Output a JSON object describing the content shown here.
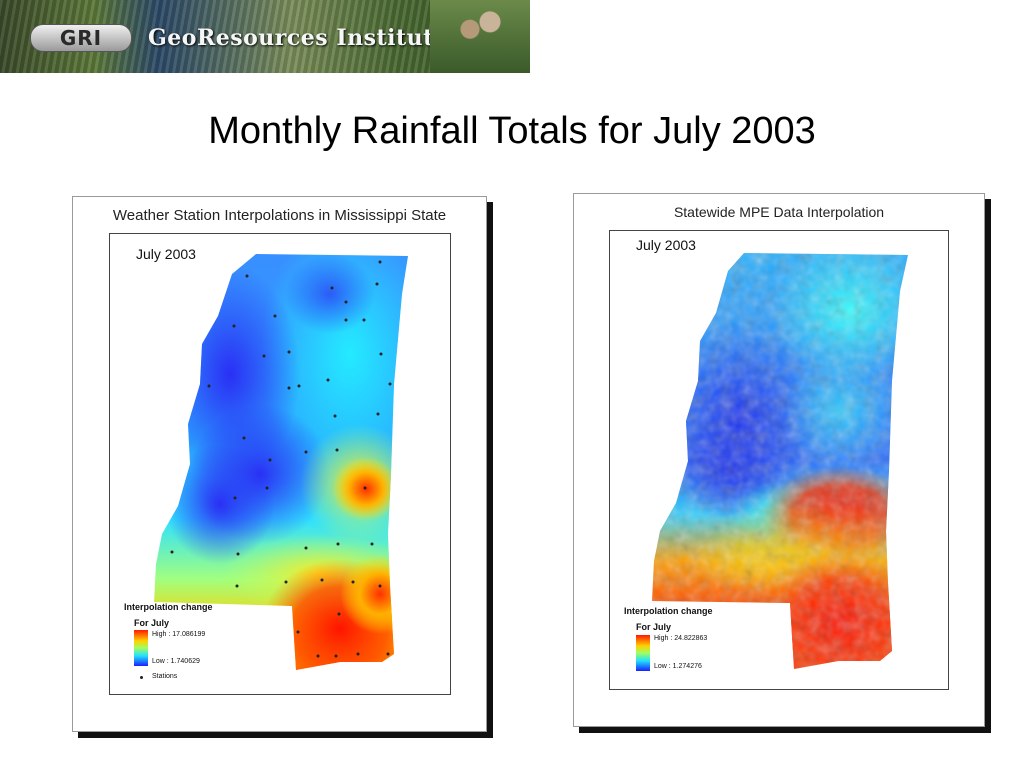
{
  "banner": {
    "logo_text": "GRI",
    "name": "GeoResources Institute"
  },
  "title": "Monthly Rainfall Totals for July 2003",
  "panels": {
    "left": {
      "title": "Weather Station Interpolations in Mississippi State",
      "month": "July 2003",
      "legend": {
        "title": "Interpolation change",
        "subtitle": "For July",
        "high": "High : 17.086199",
        "low": "Low : 1.740629",
        "stations": "Stations"
      }
    },
    "right": {
      "title": "Statewide MPE Data Interpolation",
      "month": "July 2003",
      "legend": {
        "title": "Interpolation change",
        "subtitle": "For July",
        "high": "High : 24.822863",
        "low": "Low : 1.274276"
      }
    }
  },
  "colors": {
    "low": "#1a20ff",
    "high": "#ff1a00",
    "shadow": "#111111"
  }
}
